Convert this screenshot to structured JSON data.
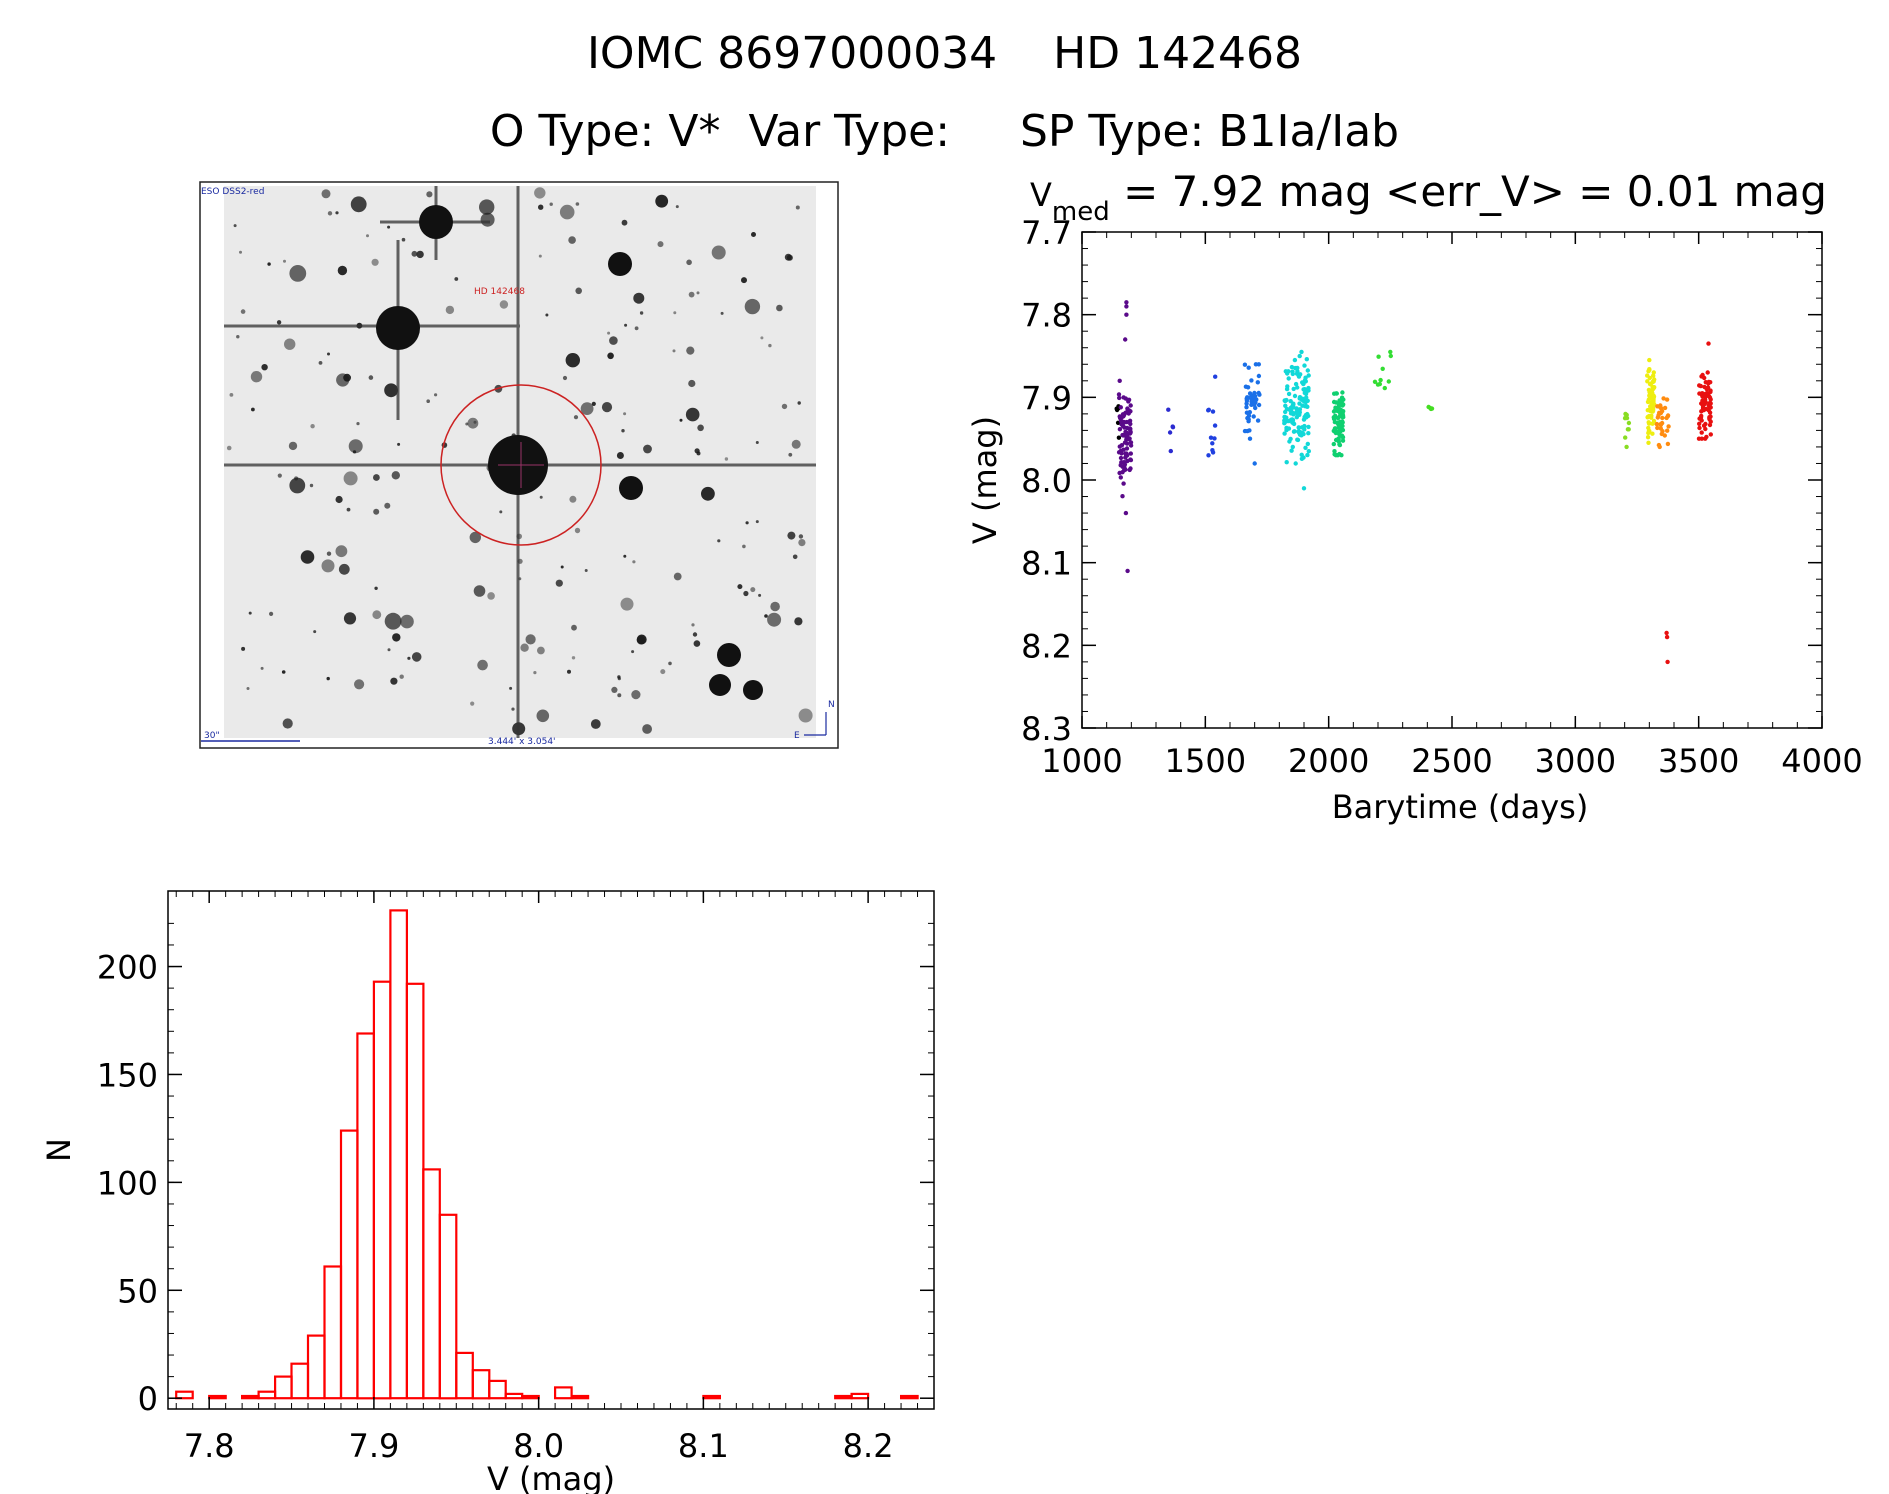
{
  "header": {
    "line1": "IOMC 8697000034    HD 142468",
    "line2": "O Type: V*  Var Type:     SP Type: B1Ia/Iab"
  },
  "finder": {
    "survey": "ESO DSS2-red",
    "target_label": "HD 142468",
    "scale_label": "30\"",
    "fov_label": "3.444' x 3.054'",
    "north": "N",
    "east": "E"
  },
  "chart_data": [
    {
      "id": "lightcurve",
      "type": "scatter",
      "title_main": "V",
      "title_sub": "med",
      "title_rest": " = 7.92 mag <err_V> = 0.01 mag",
      "xlabel": "Barytime (days)",
      "ylabel": "V (mag)",
      "xlim": [
        1000,
        4000
      ],
      "ylim": [
        7.7,
        8.3
      ],
      "y_inverted": true,
      "xticks": [
        1000,
        1500,
        2000,
        2500,
        3000,
        3500,
        4000
      ],
      "yticks": [
        "7.7",
        "7.8",
        "7.9",
        "8.0",
        "8.1",
        "8.2",
        "8.3"
      ],
      "groups": [
        {
          "x_range": [
            1140,
            1150
          ],
          "color": "#000000",
          "n": 6,
          "y_range": [
            7.89,
            7.95
          ]
        },
        {
          "x_range": [
            1150,
            1200
          ],
          "color": "#5a0a8a",
          "n": 90,
          "y_range": [
            7.88,
            8.02
          ]
        },
        {
          "x_range": [
            1340,
            1380
          ],
          "color": "#2b2bd0",
          "n": 3,
          "y_range": [
            7.92,
            7.96
          ]
        },
        {
          "x_range": [
            1490,
            1540
          ],
          "color": "#2040e0",
          "n": 10,
          "y_range": [
            7.88,
            7.99
          ]
        },
        {
          "x_range": [
            1660,
            1720
          ],
          "color": "#1a70e8",
          "n": 45,
          "y_range": [
            7.86,
            7.95
          ]
        },
        {
          "x_range": [
            1820,
            1920
          ],
          "color": "#12d8d8",
          "n": 140,
          "y_range": [
            7.85,
            7.98
          ]
        },
        {
          "x_range": [
            2020,
            2060
          ],
          "color": "#10d070",
          "n": 90,
          "y_range": [
            7.88,
            7.97
          ]
        },
        {
          "x_range": [
            2180,
            2260
          ],
          "color": "#33dd33",
          "n": 8,
          "y_range": [
            7.85,
            7.91
          ]
        },
        {
          "x_range": [
            2400,
            2420
          ],
          "color": "#44dd22",
          "n": 4,
          "y_range": [
            7.91,
            7.92
          ]
        },
        {
          "x_range": [
            3200,
            3220
          ],
          "color": "#88dd22",
          "n": 10,
          "y_range": [
            7.9,
            7.96
          ]
        },
        {
          "x_range": [
            3290,
            3320
          ],
          "color": "#eeee10",
          "n": 70,
          "y_range": [
            7.86,
            7.96
          ]
        },
        {
          "x_range": [
            3330,
            3380
          ],
          "color": "#ff8c10",
          "n": 30,
          "y_range": [
            7.89,
            7.96
          ]
        },
        {
          "x_range": [
            3500,
            3550
          ],
          "color": "#e81010",
          "n": 70,
          "y_range": [
            7.87,
            7.95
          ]
        }
      ],
      "outliers": [
        {
          "x": 1180,
          "y": 7.785,
          "color": "#5a0a8a"
        },
        {
          "x": 1180,
          "y": 7.79,
          "color": "#5a0a8a"
        },
        {
          "x": 1180,
          "y": 7.8,
          "color": "#5a0a8a"
        },
        {
          "x": 1175,
          "y": 7.83,
          "color": "#5a0a8a"
        },
        {
          "x": 1178,
          "y": 8.04,
          "color": "#5a0a8a"
        },
        {
          "x": 1185,
          "y": 8.11,
          "color": "#5a0a8a"
        },
        {
          "x": 1350,
          "y": 7.915,
          "color": "#2b2bd0"
        },
        {
          "x": 1360,
          "y": 7.965,
          "color": "#2b2bd0"
        },
        {
          "x": 1540,
          "y": 7.875,
          "color": "#2040e0"
        },
        {
          "x": 1700,
          "y": 7.98,
          "color": "#1a70e8"
        },
        {
          "x": 1890,
          "y": 7.845,
          "color": "#12d8d8"
        },
        {
          "x": 1900,
          "y": 8.01,
          "color": "#12d8d8"
        },
        {
          "x": 2250,
          "y": 7.845,
          "color": "#33dd33"
        },
        {
          "x": 2252,
          "y": 7.85,
          "color": "#33dd33"
        },
        {
          "x": 3300,
          "y": 7.855,
          "color": "#eeee10"
        },
        {
          "x": 3370,
          "y": 8.185,
          "color": "#e81010"
        },
        {
          "x": 3372,
          "y": 8.19,
          "color": "#e81010"
        },
        {
          "x": 3374,
          "y": 8.22,
          "color": "#e81010"
        },
        {
          "x": 3540,
          "y": 7.835,
          "color": "#e81010"
        }
      ]
    },
    {
      "id": "histogram",
      "type": "bar",
      "xlabel": "V (mag)",
      "ylabel": "N",
      "xlim": [
        7.775,
        8.24
      ],
      "ylim": [
        -5,
        235
      ],
      "xticks": [
        "7.8",
        "7.9",
        "8.0",
        "8.1",
        "8.2"
      ],
      "yticks": [
        0,
        50,
        100,
        150,
        200
      ],
      "bin_width": 0.01,
      "bin_starts": [
        7.78,
        7.79,
        7.8,
        7.81,
        7.82,
        7.83,
        7.84,
        7.85,
        7.86,
        7.87,
        7.88,
        7.89,
        7.9,
        7.91,
        7.92,
        7.93,
        7.94,
        7.95,
        7.96,
        7.97,
        7.98,
        7.99,
        8.0,
        8.01,
        8.02,
        8.03,
        8.04,
        8.05,
        8.06,
        8.07,
        8.08,
        8.09,
        8.1,
        8.11,
        8.12,
        8.13,
        8.14,
        8.15,
        8.16,
        8.17,
        8.18,
        8.19,
        8.2,
        8.21,
        8.22
      ],
      "values": [
        3,
        0,
        1,
        0,
        1,
        3,
        10,
        16,
        29,
        61,
        124,
        169,
        193,
        226,
        192,
        106,
        85,
        21,
        13,
        8,
        2,
        1,
        0,
        5,
        1,
        0,
        0,
        0,
        0,
        0,
        0,
        0,
        1,
        0,
        0,
        0,
        0,
        0,
        0,
        0,
        1,
        2,
        0,
        0,
        1
      ],
      "color": "#ff0000"
    }
  ]
}
